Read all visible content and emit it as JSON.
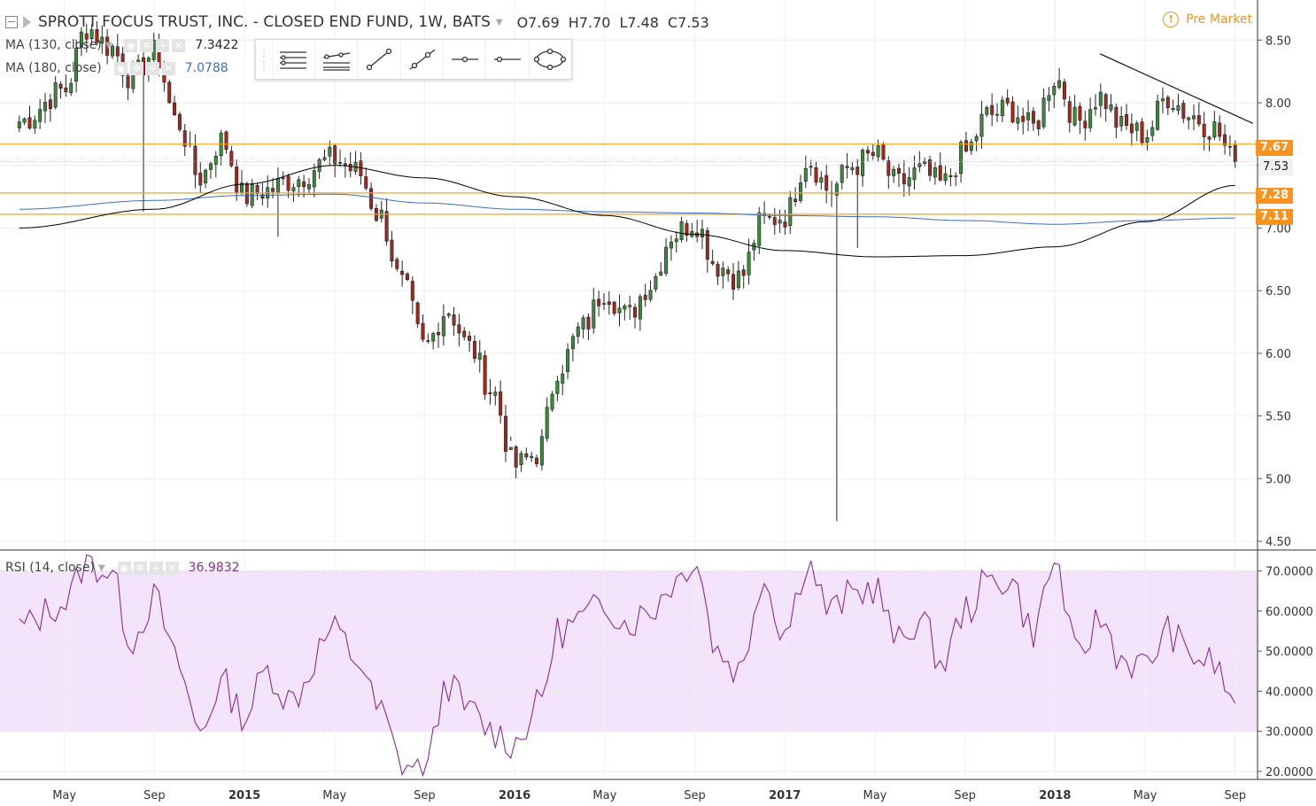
{
  "header": {
    "title": "SPROTT FOCUS TRUST, INC. - CLOSED END FUND, 1W, BATS",
    "open": "O7.69",
    "high": "H7.70",
    "low": "L7.48",
    "close": "C7.53",
    "premarket_label": "Pre Market"
  },
  "indicators": {
    "ma130": {
      "label": "MA (130, close)",
      "value": "7.3422",
      "color": "#000000"
    },
    "ma180": {
      "label": "MA (180, close)",
      "value": "7.0788",
      "color": "#3a6ec9"
    },
    "rsi": {
      "label": "RSI (14, close)",
      "value": "36.9832",
      "color": "#8a2b9a"
    }
  },
  "price_tags": {
    "resistance_high": "7.67",
    "current": "7.53",
    "support_mid": "7.28",
    "support_low": "7.11"
  },
  "toolbar": {
    "icons": [
      "horizontal-lines-icon",
      "parallel-channel-icon",
      "trend-line-icon",
      "ray-icon",
      "horizontal-ray-icon",
      "horizontal-line-icon",
      "ellipse-icon"
    ]
  },
  "chart_data": {
    "type": "candlestick",
    "price_axis": {
      "ticks": [
        "8.50",
        "8.00",
        "7.50",
        "7.00",
        "6.50",
        "6.00",
        "5.50",
        "5.00",
        "4.50"
      ],
      "range": [
        4.43,
        8.82
      ]
    },
    "rsi_axis": {
      "ticks": [
        "70.0000",
        "60.0000",
        "50.0000",
        "40.0000",
        "30.0000",
        "20.0000"
      ],
      "range": [
        18,
        75
      ],
      "band": [
        30,
        70
      ]
    },
    "x_labels": [
      "May",
      "Sep",
      "2015",
      "May",
      "Sep",
      "2016",
      "May",
      "Sep",
      "2017",
      "May",
      "Sep",
      "2018",
      "May",
      "Sep"
    ],
    "horizontal_levels": [
      7.67,
      7.28,
      7.11
    ],
    "trend_line": {
      "from": [
        "2018-03",
        8.39
      ],
      "to": [
        "2018-09",
        7.8
      ]
    },
    "ohlc_anchors": [
      [
        "2014-03",
        7.85
      ],
      [
        "2014-05",
        8.1
      ],
      [
        "2014-06",
        8.6
      ],
      [
        "2014-07",
        8.45
      ],
      [
        "2014-08",
        8.2
      ],
      [
        "2014-09",
        8.4
      ],
      [
        "2014-10",
        7.85
      ],
      [
        "2014-11",
        7.4
      ],
      [
        "2014-12",
        7.7
      ],
      [
        "2015-01",
        7.25
      ],
      [
        "2015-02",
        7.3
      ],
      [
        "2015-03",
        7.38
      ],
      [
        "2015-05",
        7.55
      ],
      [
        "2015-06",
        7.45
      ],
      [
        "2015-07",
        7.1
      ],
      [
        "2015-08",
        6.55
      ],
      [
        "2015-09",
        6.05
      ],
      [
        "2015-10",
        6.35
      ],
      [
        "2015-11",
        6.05
      ],
      [
        "2015-12",
        5.7
      ],
      [
        "2016-01",
        5.1
      ],
      [
        "2016-02",
        5.2
      ],
      [
        "2016-03",
        5.9
      ],
      [
        "2016-04",
        6.2
      ],
      [
        "2016-05",
        6.5
      ],
      [
        "2016-06",
        6.3
      ],
      [
        "2016-07",
        6.55
      ],
      [
        "2016-08",
        6.95
      ],
      [
        "2016-09",
        7.05
      ],
      [
        "2016-10",
        6.7
      ],
      [
        "2016-11",
        6.6
      ],
      [
        "2016-12",
        7.05
      ],
      [
        "2017-01",
        7.1
      ],
      [
        "2017-02",
        7.55
      ],
      [
        "2017-03",
        7.3
      ],
      [
        "2017-04",
        7.5
      ],
      [
        "2017-05",
        7.58
      ],
      [
        "2017-06",
        7.35
      ],
      [
        "2017-07",
        7.45
      ],
      [
        "2017-08",
        7.35
      ],
      [
        "2017-09",
        7.6
      ],
      [
        "2017-10",
        7.9
      ],
      [
        "2017-11",
        7.95
      ],
      [
        "2017-12",
        7.8
      ],
      [
        "2018-01",
        8.2
      ],
      [
        "2018-02",
        7.85
      ],
      [
        "2018-03",
        8.05
      ],
      [
        "2018-04",
        7.8
      ],
      [
        "2018-05",
        7.75
      ],
      [
        "2018-06",
        8.05
      ],
      [
        "2018-07",
        7.9
      ],
      [
        "2018-08",
        7.8
      ],
      [
        "2018-09",
        7.53
      ]
    ],
    "ma130_anchors": [
      [
        "2014-03",
        7.0
      ],
      [
        "2014-09",
        7.15
      ],
      [
        "2015-01",
        7.35
      ],
      [
        "2015-05",
        7.5
      ],
      [
        "2015-09",
        7.4
      ],
      [
        "2016-01",
        7.25
      ],
      [
        "2016-05",
        7.1
      ],
      [
        "2016-09",
        6.95
      ],
      [
        "2017-01",
        6.82
      ],
      [
        "2017-05",
        6.77
      ],
      [
        "2017-09",
        6.78
      ],
      [
        "2018-01",
        6.85
      ],
      [
        "2018-05",
        7.05
      ],
      [
        "2018-09",
        7.34
      ]
    ],
    "ma180_anchors": [
      [
        "2014-03",
        7.15
      ],
      [
        "2014-09",
        7.22
      ],
      [
        "2015-01",
        7.26
      ],
      [
        "2015-05",
        7.27
      ],
      [
        "2015-09",
        7.2
      ],
      [
        "2016-01",
        7.15
      ],
      [
        "2016-05",
        7.13
      ],
      [
        "2016-09",
        7.12
      ],
      [
        "2017-01",
        7.1
      ],
      [
        "2017-05",
        7.09
      ],
      [
        "2017-09",
        7.06
      ],
      [
        "2018-01",
        7.03
      ],
      [
        "2018-05",
        7.06
      ],
      [
        "2018-09",
        7.08
      ]
    ],
    "rsi_anchors": [
      [
        "2014-03",
        56
      ],
      [
        "2014-05",
        62
      ],
      [
        "2014-06",
        72
      ],
      [
        "2014-07",
        70
      ],
      [
        "2014-08",
        53
      ],
      [
        "2014-09",
        63
      ],
      [
        "2014-10",
        47
      ],
      [
        "2014-11",
        30
      ],
      [
        "2014-12",
        42
      ],
      [
        "2015-01",
        34
      ],
      [
        "2015-02",
        45
      ],
      [
        "2015-03",
        38
      ],
      [
        "2015-05",
        55
      ],
      [
        "2015-06",
        48
      ],
      [
        "2015-07",
        35
      ],
      [
        "2015-08",
        22
      ],
      [
        "2015-09",
        20
      ],
      [
        "2015-10",
        42
      ],
      [
        "2015-11",
        35
      ],
      [
        "2015-12",
        30
      ],
      [
        "2016-01",
        27
      ],
      [
        "2016-02",
        36
      ],
      [
        "2016-03",
        55
      ],
      [
        "2016-04",
        58
      ],
      [
        "2016-05",
        62
      ],
      [
        "2016-06",
        57
      ],
      [
        "2016-07",
        60
      ],
      [
        "2016-08",
        67
      ],
      [
        "2016-09",
        73
      ],
      [
        "2016-10",
        50
      ],
      [
        "2016-11",
        45
      ],
      [
        "2016-12",
        68
      ],
      [
        "2017-01",
        55
      ],
      [
        "2017-02",
        72
      ],
      [
        "2017-03",
        60
      ],
      [
        "2017-04",
        64
      ],
      [
        "2017-05",
        66
      ],
      [
        "2017-06",
        52
      ],
      [
        "2017-07",
        58
      ],
      [
        "2017-08",
        47
      ],
      [
        "2017-09",
        60
      ],
      [
        "2017-10",
        67
      ],
      [
        "2017-11",
        68
      ],
      [
        "2017-12",
        55
      ],
      [
        "2018-01",
        72
      ],
      [
        "2018-02",
        48
      ],
      [
        "2018-03",
        58
      ],
      [
        "2018-04",
        48
      ],
      [
        "2018-05",
        46
      ],
      [
        "2018-06",
        55
      ],
      [
        "2018-07",
        49
      ],
      [
        "2018-08",
        47
      ],
      [
        "2018-09",
        37
      ]
    ]
  }
}
